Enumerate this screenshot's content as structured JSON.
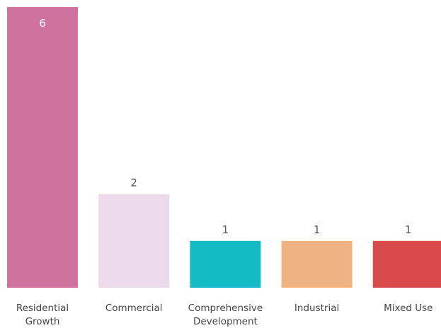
{
  "chart_data": {
    "type": "bar",
    "categories": [
      "Residential Growth",
      "Commercial",
      "Comprehensive Development",
      "Industrial",
      "Mixed Use"
    ],
    "category_lines": [
      [
        "Residential",
        "Growth"
      ],
      [
        "Commercial"
      ],
      [
        "Comprehensive",
        "Development"
      ],
      [
        "Industrial"
      ],
      [
        "Mixed Use"
      ]
    ],
    "values": [
      6,
      2,
      1,
      1,
      1
    ],
    "value_labels": [
      "6",
      "2",
      "1",
      "1",
      "1"
    ],
    "colors": [
      "#cf729e",
      "#ecd9ea",
      "#13bcc4",
      "#f0b283",
      "#d94a4a"
    ],
    "ylim": [
      0,
      6
    ],
    "grid": false,
    "legend": "none",
    "title": "",
    "xlabel": "",
    "ylabel": ""
  }
}
